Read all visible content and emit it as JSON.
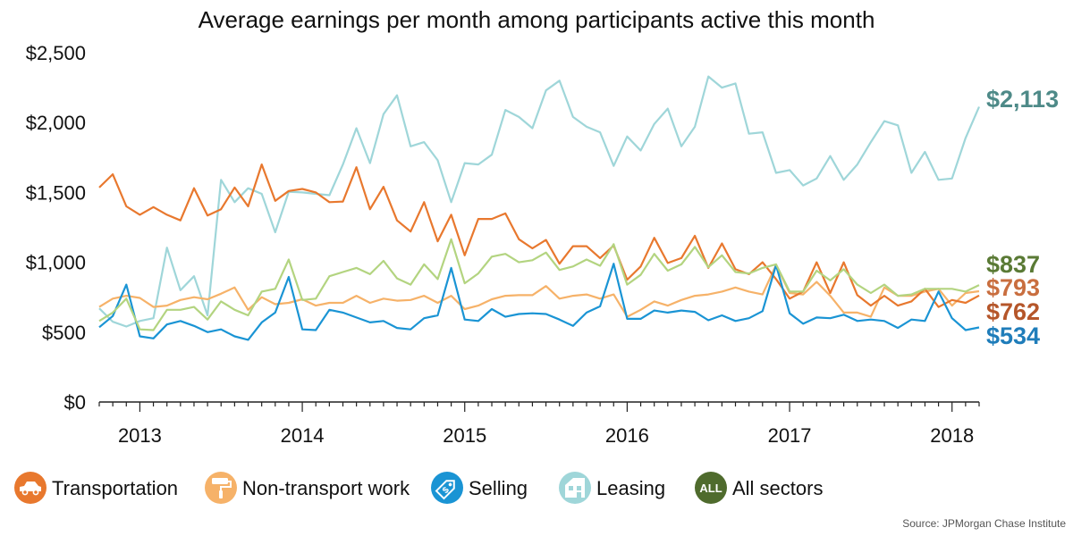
{
  "chart_data": {
    "type": "line",
    "title": "Average earnings per month among participants active this month",
    "source": "Source: JPMorgan Chase Institute",
    "xlabel": "",
    "ylabel": "",
    "x_ticks": [
      "2013",
      "2014",
      "2015",
      "2016",
      "2017",
      "2018"
    ],
    "y_ticks": [
      "$0",
      "$500",
      "$1,000",
      "$1,500",
      "$2,000",
      "$2,500"
    ],
    "ylim": [
      0,
      2500
    ],
    "xlim": [
      "2012-10",
      "2018-03"
    ],
    "grid": false,
    "legend_position": "bottom",
    "x": [
      "2012-10",
      "2012-11",
      "2012-12",
      "2013-01",
      "2013-02",
      "2013-03",
      "2013-04",
      "2013-05",
      "2013-06",
      "2013-07",
      "2013-08",
      "2013-09",
      "2013-10",
      "2013-11",
      "2013-12",
      "2014-01",
      "2014-02",
      "2014-03",
      "2014-04",
      "2014-05",
      "2014-06",
      "2014-07",
      "2014-08",
      "2014-09",
      "2014-10",
      "2014-11",
      "2014-12",
      "2015-01",
      "2015-02",
      "2015-03",
      "2015-04",
      "2015-05",
      "2015-06",
      "2015-07",
      "2015-08",
      "2015-09",
      "2015-10",
      "2015-11",
      "2015-12",
      "2016-01",
      "2016-02",
      "2016-03",
      "2016-04",
      "2016-05",
      "2016-06",
      "2016-07",
      "2016-08",
      "2016-09",
      "2016-10",
      "2016-11",
      "2016-12",
      "2017-01",
      "2017-02",
      "2017-03",
      "2017-04",
      "2017-05",
      "2017-06",
      "2017-07",
      "2017-08",
      "2017-09",
      "2017-10",
      "2017-11",
      "2017-12",
      "2018-01",
      "2018-02",
      "2018-03"
    ],
    "series": [
      {
        "name": "Transportation",
        "color": "#E8782E",
        "end_label": "$762",
        "label_color": "#B5562A",
        "icon": "car-icon",
        "values": [
          1535,
          1630,
          1400,
          1340,
          1395,
          1340,
          1300,
          1530,
          1335,
          1380,
          1535,
          1400,
          1700,
          1440,
          1510,
          1525,
          1500,
          1430,
          1435,
          1680,
          1380,
          1540,
          1300,
          1220,
          1430,
          1150,
          1340,
          1050,
          1310,
          1310,
          1350,
          1165,
          1100,
          1160,
          990,
          1115,
          1115,
          1030,
          1120,
          875,
          970,
          1175,
          995,
          1030,
          1190,
          960,
          1135,
          950,
          915,
          1000,
          880,
          740,
          790,
          1000,
          780,
          1000,
          765,
          690,
          760,
          690,
          720,
          810,
          680,
          730,
          710,
          762
        ]
      },
      {
        "name": "Non-transport work",
        "color": "#F6B269",
        "end_label": "$793",
        "label_color": "#C96E3F",
        "icon": "paint-roller-icon",
        "values": [
          680,
          740,
          760,
          745,
          680,
          690,
          730,
          750,
          735,
          775,
          820,
          660,
          750,
          700,
          710,
          735,
          690,
          710,
          710,
          760,
          710,
          740,
          725,
          730,
          760,
          710,
          760,
          665,
          690,
          735,
          760,
          765,
          765,
          830,
          740,
          760,
          770,
          740,
          770,
          610,
          660,
          720,
          690,
          730,
          760,
          770,
          790,
          820,
          790,
          770,
          980,
          780,
          770,
          860,
          760,
          640,
          640,
          610,
          820,
          760,
          760,
          790,
          810,
          690,
          780,
          793
        ]
      },
      {
        "name": "Selling",
        "color": "#1A94D4",
        "end_label": "$534",
        "label_color": "#1F7DBA",
        "icon": "price-tag-icon",
        "values": [
          535,
          615,
          840,
          470,
          455,
          555,
          580,
          545,
          500,
          520,
          470,
          445,
          570,
          640,
          895,
          520,
          515,
          660,
          640,
          605,
          570,
          580,
          530,
          520,
          600,
          620,
          960,
          590,
          580,
          665,
          610,
          630,
          635,
          630,
          590,
          545,
          640,
          685,
          990,
          595,
          595,
          655,
          640,
          655,
          645,
          585,
          620,
          580,
          600,
          650,
          980,
          635,
          560,
          605,
          600,
          625,
          580,
          590,
          580,
          530,
          590,
          580,
          790,
          600,
          515,
          534
        ]
      },
      {
        "name": "Leasing",
        "color": "#9FD6D9",
        "end_label": "$2,113",
        "label_color": "#4E8A88",
        "icon": "house-icon",
        "values": [
          670,
          575,
          540,
          580,
          600,
          1105,
          800,
          900,
          620,
          1590,
          1430,
          1530,
          1490,
          1215,
          1505,
          1500,
          1490,
          1480,
          1700,
          1960,
          1710,
          2060,
          2195,
          1830,
          1860,
          1730,
          1430,
          1710,
          1700,
          1770,
          2090,
          2040,
          1960,
          2230,
          2300,
          2040,
          1970,
          1930,
          1690,
          1900,
          1800,
          1990,
          2100,
          1830,
          1970,
          2330,
          2250,
          2280,
          1920,
          1930,
          1640,
          1660,
          1550,
          1600,
          1760,
          1590,
          1700,
          1860,
          2010,
          1980,
          1640,
          1790,
          1590,
          1600,
          1890,
          2113
        ]
      },
      {
        "name": "All sectors",
        "color": "#B3D480",
        "end_label": "$837",
        "label_color": "#5A7A35",
        "icon": "all-icon",
        "icon_text": "ALL",
        "legend_color": "#4F6B2D",
        "values": [
          580,
          640,
          740,
          520,
          515,
          660,
          660,
          680,
          590,
          720,
          660,
          620,
          790,
          810,
          1020,
          730,
          740,
          900,
          930,
          960,
          915,
          1010,
          885,
          840,
          985,
          880,
          1165,
          850,
          920,
          1040,
          1060,
          1000,
          1015,
          1070,
          945,
          970,
          1020,
          975,
          1130,
          840,
          910,
          1060,
          940,
          985,
          1110,
          965,
          1050,
          930,
          920,
          960,
          985,
          790,
          790,
          940,
          870,
          950,
          840,
          780,
          840,
          760,
          770,
          810,
          810,
          810,
          790,
          837
        ]
      }
    ]
  }
}
